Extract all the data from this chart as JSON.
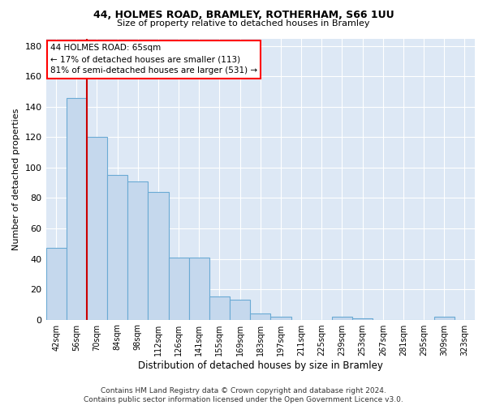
{
  "title1": "44, HOLMES ROAD, BRAMLEY, ROTHERHAM, S66 1UU",
  "title2": "Size of property relative to detached houses in Bramley",
  "xlabel": "Distribution of detached houses by size in Bramley",
  "ylabel": "Number of detached properties",
  "categories": [
    "42sqm",
    "56sqm",
    "70sqm",
    "84sqm",
    "98sqm",
    "112sqm",
    "126sqm",
    "141sqm",
    "155sqm",
    "169sqm",
    "183sqm",
    "197sqm",
    "211sqm",
    "225sqm",
    "239sqm",
    "253sqm",
    "267sqm",
    "281sqm",
    "295sqm",
    "309sqm",
    "323sqm"
  ],
  "values": [
    47,
    146,
    120,
    95,
    91,
    84,
    41,
    41,
    15,
    13,
    4,
    2,
    0,
    0,
    2,
    1,
    0,
    0,
    0,
    2,
    0
  ],
  "bar_color": "#c5d8ed",
  "bar_edge_color": "#6aaad4",
  "bar_width": 1.0,
  "red_line_x": 1.5,
  "annotation_text": "44 HOLMES ROAD: 65sqm\n← 17% of detached houses are smaller (113)\n81% of semi-detached houses are larger (531) →",
  "annotation_box_color": "white",
  "annotation_box_edge_color": "red",
  "red_line_color": "#cc0000",
  "ylim": [
    0,
    185
  ],
  "yticks": [
    0,
    20,
    40,
    60,
    80,
    100,
    120,
    140,
    160,
    180
  ],
  "background_color": "#dde8f5",
  "grid_color": "white",
  "footnote": "Contains HM Land Registry data © Crown copyright and database right 2024.\nContains public sector information licensed under the Open Government Licence v3.0."
}
